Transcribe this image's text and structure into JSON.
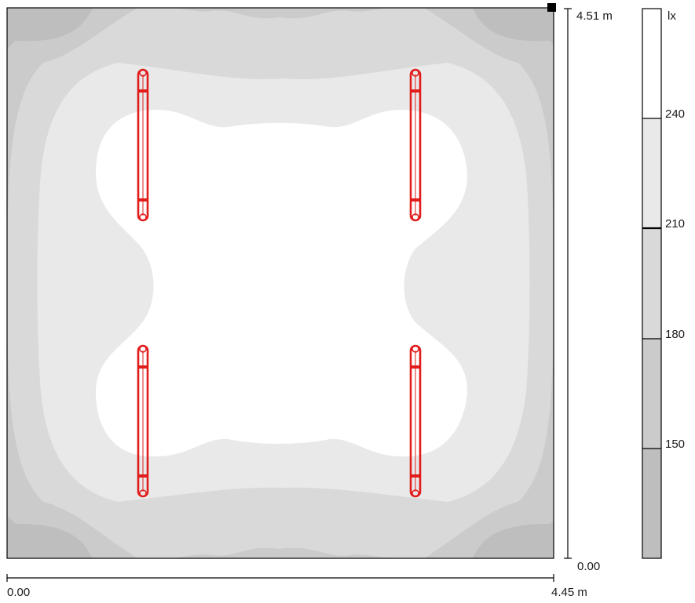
{
  "room": {
    "dimension_y_label": "4.51 m",
    "dimension_x_label": "4.45 m",
    "origin_x_label": "0.00",
    "origin_y_label": "0.00"
  },
  "legend": {
    "unit": "lx",
    "levels": [
      {
        "value": "240",
        "color": "#ffffff"
      },
      {
        "value": "210",
        "color": "#e8e8e8"
      },
      {
        "value": "180",
        "color": "#d9d9d9"
      },
      {
        "value": "150",
        "color": "#cbcbcb"
      }
    ],
    "lowest_band_color": "#bebebe"
  },
  "colors": {
    "luminaire": "#e21b1b",
    "outline": "#000000"
  },
  "luminaires": [
    {
      "id": "top-left"
    },
    {
      "id": "top-right"
    },
    {
      "id": "bottom-left"
    },
    {
      "id": "bottom-right"
    }
  ]
}
